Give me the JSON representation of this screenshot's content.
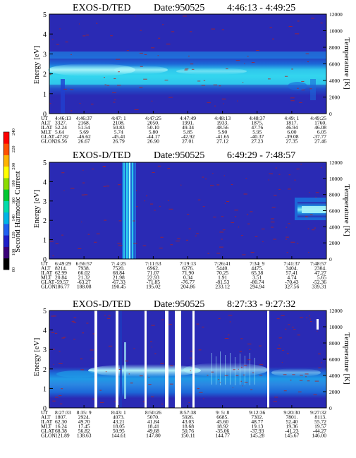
{
  "colors": {
    "background": "#2a2ab4",
    "cyan_band": "#33d6ee",
    "light_band": "#a8f4f8",
    "mid_band": "#0f78dc",
    "noise": "#b02222",
    "white": "#ffffff",
    "colorbar": [
      "#000000",
      "#3a0078",
      "#1e1ec8",
      "#2060f0",
      "#00b4e6",
      "#00dcaa",
      "#00c832",
      "#8cdc00",
      "#ffff00",
      "#ffb400",
      "#ff5000",
      "#ff0000"
    ]
  },
  "colorbar": {
    "label": "Second Harmonic Current",
    "ticks": [
      "80",
      "100",
      "120",
      "140",
      "160",
      "180",
      "200",
      "220",
      "240"
    ]
  },
  "ephem_labels": [
    "UT",
    "ALT",
    "ILAT",
    "MLT",
    "GLAT",
    "GLON"
  ],
  "chart_data": [
    {
      "type": "heatmap",
      "title": "EXOS-D/TED",
      "date": "Date:950525",
      "time_range": "4:46:13 - 4:49:25",
      "ylabel": "Energy [eV]",
      "y2label": "Temperature [K]",
      "ylim": [
        0,
        5
      ],
      "y2lim": [
        0,
        12000
      ],
      "yticks": [
        "0",
        "1",
        "2",
        "3",
        "4",
        "5"
      ],
      "y2ticks": [
        "0",
        "2000",
        "4000",
        "6000",
        "8000",
        "10000",
        "12000"
      ],
      "ephemeris": [
        [
          "4:46:13",
          "3327.",
          "52.24",
          "5.64",
          "-47.82",
          "26.56"
        ],
        [
          "4:46:37",
          "2168.",
          "51.54",
          "5.69",
          "-46.62",
          "26.67"
        ],
        [
          "4:47: 1",
          "2108.",
          "50.83",
          "5.74",
          "-45.41",
          "26.79"
        ],
        [
          "4:47:25",
          "2050.",
          "50.10",
          "5.80",
          "-44.17",
          "26.90"
        ],
        [
          "4:47:49",
          "1991.",
          "49.34",
          "5.85",
          "-42.92",
          "27.01"
        ],
        [
          "4:48:13",
          "1933.",
          "48.56",
          "5.90",
          "-41.65",
          "27.12"
        ],
        [
          "4:48:37",
          "1875.",
          "47.76",
          "5.95",
          "-40.37",
          "27.23"
        ],
        [
          "4:49: 1",
          "1817.",
          "46.94",
          "6.00",
          "-39.08",
          "27.35"
        ],
        [
          "4:49:25",
          "1760.",
          "46.08",
          "6.05",
          "-37.77",
          "27.46"
        ]
      ]
    },
    {
      "type": "heatmap",
      "title": "EXOS-D/TED",
      "date": "Date:950525",
      "time_range": "6:49:29 - 7:48:57",
      "ylabel": "Energy [eV]",
      "y2label": "Temperature [K]",
      "ylim": [
        0,
        5
      ],
      "y2lim": [
        0,
        12000
      ],
      "yticks": [
        "0",
        "1",
        "2",
        "3",
        "4",
        "5"
      ],
      "y2ticks": [
        "0",
        "2000",
        "4000",
        "6000",
        "8000",
        "10000",
        "12000"
      ],
      "ephemeris": [
        [
          "6:49:29",
          "8214.",
          "62.99",
          "20.84",
          "-59.57",
          "186.77"
        ],
        [
          "6:56:57",
          "7938.",
          "66.02",
          "21.32",
          "-63.27",
          "188.08"
        ],
        [
          "7: 4:25",
          "7520.",
          "68.84",
          "21.98",
          "-67.33",
          "190.45"
        ],
        [
          "7:11:53",
          "6962.",
          "71.07",
          "22.93",
          "-71.85",
          "195.02"
        ],
        [
          "7:19:13",
          "6276.",
          "71.90",
          "0.34",
          "-76.77",
          "204.86"
        ],
        [
          "7:26:41",
          "5440.",
          "70.25",
          "1.91",
          "-81.53",
          "233.12"
        ],
        [
          "7:34: 9",
          "4475.",
          "65.38",
          "3.51",
          "-80.74",
          "294.94"
        ],
        [
          "7:41:37",
          "3404.",
          "57.41",
          "4.74",
          "-70.43",
          "327.56"
        ],
        [
          "7:48:57",
          "2304.",
          "47.27",
          "5.65",
          "-52.36",
          "339.31"
        ]
      ]
    },
    {
      "type": "heatmap",
      "title": "EXOS-D/TED",
      "date": "Date:950525",
      "time_range": "8:27:33 - 9:27:32",
      "ylabel": "Energy [eV]",
      "y2label": "Temperature [K]",
      "ylim": [
        0,
        5
      ],
      "y2lim": [
        0,
        12000
      ],
      "yticks": [
        "0",
        "1",
        "2",
        "3",
        "4",
        "5"
      ],
      "y2ticks": [
        "0",
        "2000",
        "4000",
        "6000",
        "8000",
        "10000",
        "12000"
      ],
      "ephemeris": [
        [
          "8:27:33",
          "1807.",
          "62.30",
          "16.24",
          "68.38",
          "121.89"
        ],
        [
          "8:35: 9",
          "2924.",
          "49.70",
          "17.45",
          "56.82",
          "138.63"
        ],
        [
          "8:43: 1",
          "4073.",
          "43.21",
          "18.05",
          "50.95",
          "144.61"
        ],
        [
          "8:50:26",
          "5070.",
          "41.84",
          "18.41",
          "49.68",
          "147.80"
        ],
        [
          "8:57:38",
          "5926.",
          "43.03",
          "18.68",
          "50.76",
          "150.11"
        ],
        [
          "9: 5: 8",
          "6685.",
          "45.60",
          "18.92",
          "-35.06",
          "144.77"
        ],
        [
          "9:12:36",
          "7302.",
          "48.77",
          "19.13",
          "-37.93",
          "145.28"
        ],
        [
          "9:20:30",
          "7801.",
          "52.40",
          "19.36",
          "-41.23",
          "145.67"
        ],
        [
          "9:27:32",
          "8113.",
          "55.72",
          "19.57",
          "-44.27",
          "146.00"
        ]
      ]
    }
  ]
}
